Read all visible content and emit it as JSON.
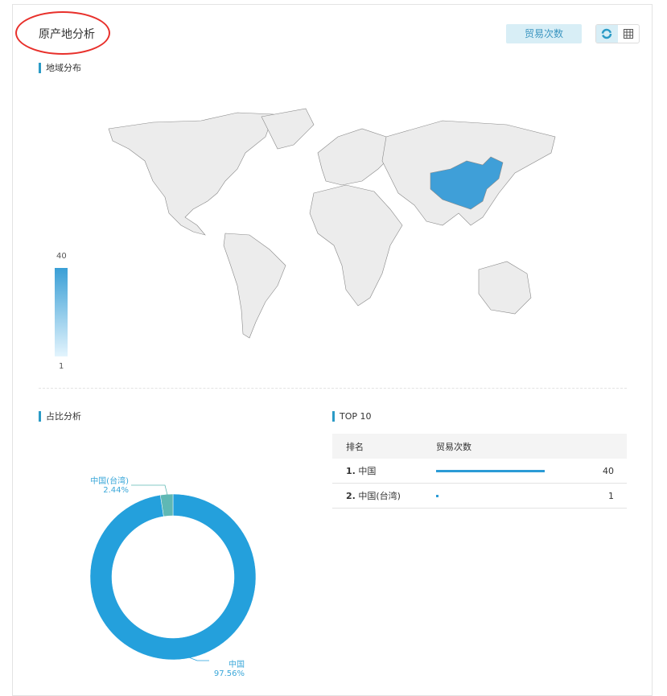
{
  "header": {
    "title": "原产地分析",
    "metric_button": "贸易次数",
    "view_toggle": [
      {
        "icon": "donut-icon",
        "active": true
      },
      {
        "icon": "table-icon",
        "active": false
      }
    ]
  },
  "map": {
    "section_title": "地域分布",
    "legend_max": "40",
    "legend_min": "1",
    "highlight_color": "#3f9fd8",
    "highlighted": [
      "中国"
    ]
  },
  "pie": {
    "section_title": "占比分析",
    "slices": [
      {
        "label": "中国",
        "percent_label": "97.56%",
        "value": 97.56,
        "color": "#24a0dc"
      },
      {
        "label": "中国(台湾)",
        "percent_label": "2.44%",
        "value": 2.44,
        "color": "#5fb8b4"
      }
    ]
  },
  "top10": {
    "section_title": "TOP 10",
    "columns": [
      "排名",
      "贸易次数"
    ],
    "max": 40,
    "rows": [
      {
        "rank": "1.",
        "name": "中国",
        "value": 40,
        "value_label": "40"
      },
      {
        "rank": "2.",
        "name": "中国(台湾)",
        "value": 1,
        "value_label": "1"
      }
    ]
  }
}
